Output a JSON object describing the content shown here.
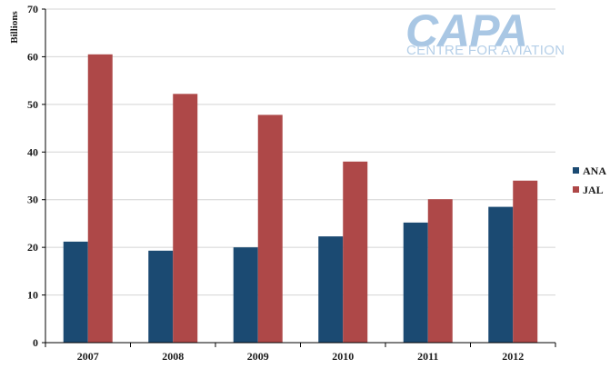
{
  "logo": {
    "name": "CAPA",
    "tagline": "CENTRE FOR AVIATION"
  },
  "chart_data": {
    "type": "bar",
    "title": "",
    "xlabel": "",
    "ylabel": "Billions",
    "ylim": [
      0,
      70
    ],
    "yticks": [
      0,
      10,
      20,
      30,
      40,
      50,
      60,
      70
    ],
    "categories": [
      "2007",
      "2008",
      "2009",
      "2010",
      "2011",
      "2012"
    ],
    "series": [
      {
        "name": "ANA",
        "color": "#1b4a72",
        "values": [
          21.2,
          19.3,
          20.0,
          22.3,
          25.2,
          28.5
        ]
      },
      {
        "name": "JAL",
        "color": "#ae4848",
        "values": [
          60.5,
          52.2,
          47.8,
          38.0,
          30.1,
          34.0
        ]
      }
    ],
    "grid": true,
    "legend_position": "right"
  }
}
